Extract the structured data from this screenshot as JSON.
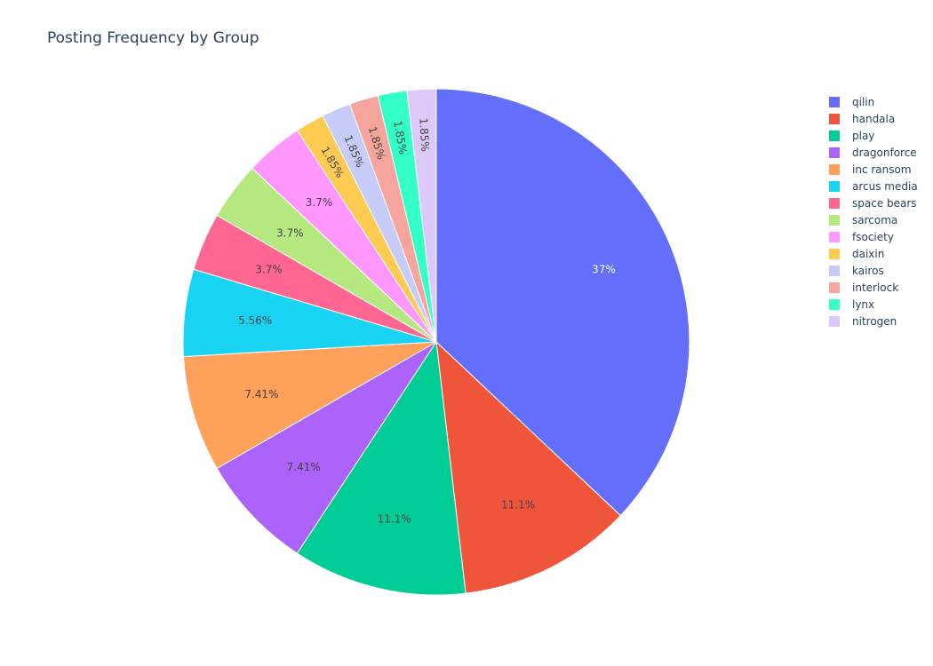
{
  "chart_data": {
    "type": "pie",
    "title": "Posting Frequency by Group",
    "labels": [
      "qilin",
      "handala",
      "play",
      "dragonforce",
      "inc ransom",
      "arcus media",
      "space bears",
      "sarcoma",
      "fsociety",
      "daixin",
      "kairos",
      "interlock",
      "lynx",
      "nitrogen"
    ],
    "values": [
      20,
      6,
      6,
      4,
      4,
      3,
      2,
      2,
      2,
      1,
      1,
      1,
      1,
      1
    ],
    "percent_labels": [
      "37%",
      "11.1%",
      "11.1%",
      "7.41%",
      "7.41%",
      "5.56%",
      "3.7%",
      "3.7%",
      "3.7%",
      "1.85%",
      "1.85%",
      "1.85%",
      "1.85%",
      "1.85%"
    ],
    "colors": [
      "#636efa",
      "#EF553B",
      "#00cc96",
      "#ab63fa",
      "#FFA15A",
      "#19d3f3",
      "#FF6692",
      "#B6E880",
      "#FF97FF",
      "#FECB52",
      "#c6cbf8",
      "#f5a59d",
      "#33ffc6",
      "#ddc8fa"
    ],
    "legend_position": "right",
    "direction": "clockwise",
    "start_angle": "top"
  }
}
